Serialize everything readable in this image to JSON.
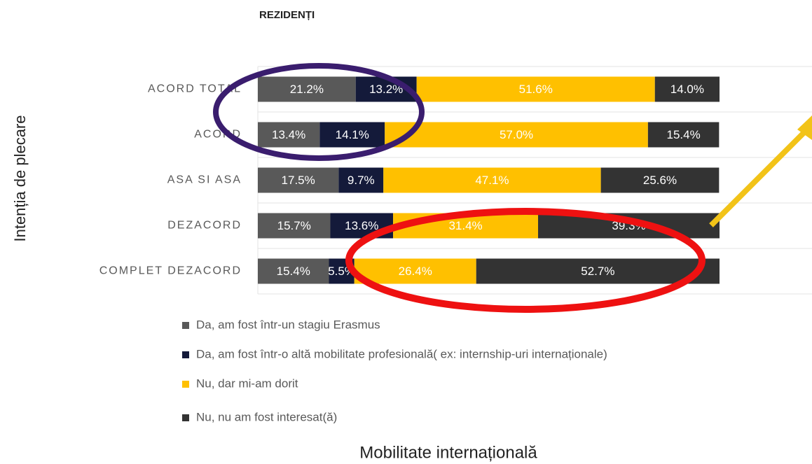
{
  "chart_data": {
    "type": "stacked-bar-horizontal",
    "title": "REZIDENȚI",
    "y_label": "Intenția de plecare",
    "x_label": "Mobilitate internațională",
    "categories": [
      "ACORD TOTAL",
      "ACORD",
      "ASA SI ASA",
      "DEZACORD",
      "COMPLET DEZACORD"
    ],
    "xlim": [
      0,
      100
    ],
    "grid": true,
    "legend": "bottom",
    "series": [
      {
        "name": "Da, am fost într-un stagiu Erasmus",
        "color": "#595959",
        "values": [
          21.2,
          13.4,
          17.5,
          15.7,
          15.4
        ],
        "value_labels": [
          "21.2%",
          "13.4%",
          "17.5%",
          "15.7%",
          "15.4%"
        ]
      },
      {
        "name": "Da, am fost într-o altă mobilitate profesională( ex: internship-uri internaționale)",
        "color": "#141a3a",
        "values": [
          13.2,
          14.1,
          9.7,
          13.6,
          5.5
        ],
        "value_labels": [
          "13.2%",
          "14.1%",
          "9.7%",
          "13.6%",
          "5.5%"
        ]
      },
      {
        "name": "Nu, dar mi-am dorit",
        "color": "#ffc000",
        "values": [
          51.6,
          57.0,
          47.1,
          31.4,
          26.4
        ],
        "value_labels": [
          "51.6%",
          "57.0%",
          "47.1%",
          "31.4%",
          "26.4%"
        ]
      },
      {
        "name": "Nu, nu am fost interesat(ă)",
        "color": "#333333",
        "values": [
          14.0,
          15.4,
          25.6,
          39.3,
          52.7
        ],
        "value_labels": [
          "14.0%",
          "15.4%",
          "25.6%",
          "39.3%",
          "52.7%"
        ]
      }
    ]
  }
}
